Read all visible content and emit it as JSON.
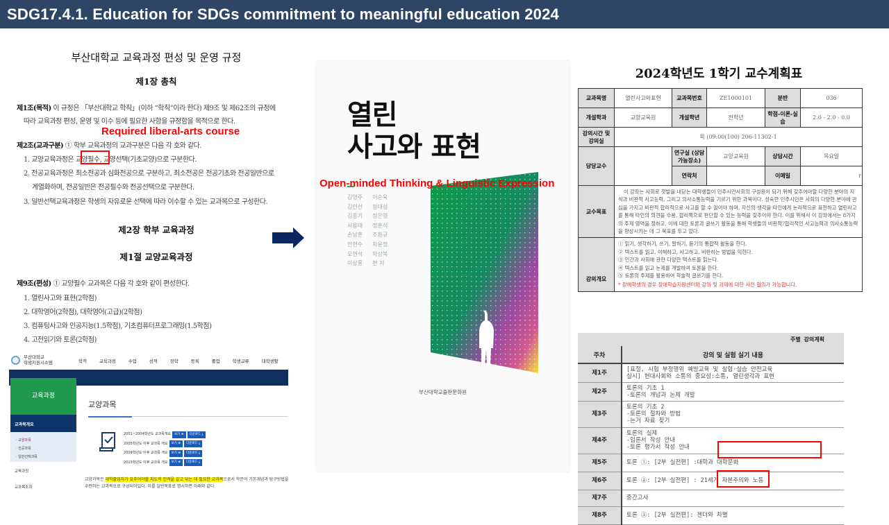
{
  "header": {
    "title": "SDG17.4.1. Education for SDGs commitment to meaningful education 2024"
  },
  "regulation": {
    "title": "부산대학교 교육과정 편성 및 운영 규정",
    "chapter1": "제1장 총칙",
    "art1_head": "제1조(목적)",
    "art1_l1": " 이 규정은 「부산대학교 학칙」(이하 “학칙”이라 한다) 제9조 및 제62조의 규정에",
    "art1_l2": "따라 교육과정 편성, 운영 및 이수 등에 필요한 사항을 규정함을 목적으로 한다.",
    "art2_head": "제2조(교과구분)",
    "art2_l0": " ① 학부 교육과정의 교과구분은 다음 각 호와 같다.",
    "art2_i1a": "1. 교양교육과정은 ",
    "art2_i1b": "교양필수",
    "art2_i1c": ", 교양선택(기초교양)으로 구분한다.",
    "art2_i2a": "2. 전공교육과정은 최소전공과 심화전공으로 구분하고, 최소전공은 전공기초와 전공일반으로",
    "art2_i2b": "계열화하며, 전공일반은 전공필수와 전공선택으로 구분한다.",
    "art2_i3": "3. 일반선택교육과정은 학생의 자유로운 선택에 따라 이수할 수 있는 교과목으로 구성한다.",
    "chapter2": "제2장 학부 교육과정",
    "section1": "제1절 교양교육과정",
    "art9_head": "제9조(편성)",
    "art9_l0": " ① 교양필수 교과목은 다음 각 호와 같이 편성한다.",
    "art9_items": [
      "1. 열린사고와 표현(2학점)",
      "2. 대학영어(2학점), 대학영어(고급)(2학점)",
      "3. 컴퓨팅사고와 인공지능(1.5학점), 기초컴퓨터프로그래밍(1.5학점)",
      "4. 고전읽기와 토론(2학점)"
    ],
    "annotation": "Required liberal-arts course"
  },
  "book": {
    "title_line1": "열린",
    "title_line2": "사고와 표현",
    "annotation": "Open-minded Thinking & Linguistic Expression",
    "authors": [
      [
        "김영주",
        "이순욱"
      ],
      [
        "김인선",
        "정대성"
      ],
      [
        "김종기",
        "정은영"
      ],
      [
        "서용태",
        "정훈식"
      ],
      [
        "손남훈",
        "조환규"
      ],
      [
        "안현수",
        "차윤정"
      ],
      [
        "오현석",
        "하상복"
      ],
      [
        "이상룡",
        "편 저"
      ]
    ],
    "publisher": "부산대학교출판문화원"
  },
  "syllabus": {
    "title": "2024학년도 1학기 교수계획표",
    "labels": {
      "course_name": "교과목명",
      "course_code": "교과목번호",
      "section": "분반",
      "dept": "개설학과",
      "year": "개설학년",
      "credits": "학점-이론-실습",
      "time_room": "강의시간 및 강의실",
      "instructor": "담당교수",
      "office": "연구실 (상담가능장소)",
      "office_hours": "상담시간",
      "contact": "연락처",
      "email": "이메일",
      "objectives": "교수목표",
      "overview": "강의개요"
    },
    "values": {
      "course_name": "열린사고와표현",
      "course_code": "ZE1000101",
      "section": "036",
      "dept": "교양교육원",
      "year": "전학년",
      "credits": "2.0 - 2.0 - 0.0",
      "time_room": "목 (09:00(100) 206-11302-1",
      "office": "교양교육원",
      "office_hours": "목요일",
      "email": "r"
    },
    "objectives": "이 강좌는 사회로 첫발을 내딛는 대학생들이 민주시민사회의 구성원이 되기 위해 갖추어야할 다양한 분야의 지식과 비판적 사고능력, 그리고 의사소통능력을 기르기 위한 과목이다. 성숙한 민주시민은 사회의 다양한 분야에 관심을 가지고 비판적 합리적으로 사고를 할 수 있어야 하며, 자신의 생각을 타인에게 논리적으로 표현하고 열린사고를 통해 타인의 의견을 수용, 합리적으로 판단할 수 있는 능력을 갖추어야 한다. 이를 위해서 이 강좌에서는 8가지의 주제 영역을 정하고, 이에 대한 토론과 글쓰기 활동을 통해 학생들의 비판적?합리적인 사고능력과 의사소통능력을 향상시키는 데 그 목표를 두고 있다.",
    "overview": [
      "① 읽기, 생각하기, 쓰기, 말하기, 듣기의 통합적 활동을 한다.",
      "② 텍스트를 읽고, 이해하고, 사고하고, 비판하는 방법을 익힌다.",
      "③ 인간과 사회에 관한 다양한 텍스트를 읽는다.",
      "④ 텍스트를 읽고 논제를 개발하여 토론을 한다.",
      "⑤ 토론의 주제를 활용하여 학술적 글쓰기를 한다."
    ],
    "note": "* 장애학생의 경우 장애학습지원센터와 강의 및 과제에 대한 사전 협의가 가능합니다."
  },
  "weekly": {
    "caption": "주별 강의계획",
    "col_week": "주차",
    "col_content": "강의 및 실험 실기 내용",
    "rows": [
      {
        "week": "제1주",
        "lines": [
          "[표절, 시험 부정행위 예방교육 및 실험·실습 안전교육",
          "실시] 현대사회와 소통의 중요성:소통, 열린생각과 표현"
        ]
      },
      {
        "week": "제2주",
        "lines": [
          "토론의 기초 1",
          "-토론의 개념과 논제 개발"
        ]
      },
      {
        "week": "제3주",
        "lines": [
          "토론의 기초 2",
          "-토론의 절차와 방법",
          "-논거 자료 찾기"
        ]
      },
      {
        "week": "제4주",
        "lines": [
          "토론의 실제",
          "-입론서 작성 안내",
          "-토론 평가서 작성 안내"
        ]
      },
      {
        "week": "제5주",
        "lines": [
          "토론 ①: [2부 실전편] :대학과 대학문화"
        ]
      },
      {
        "week": "제6주",
        "lines": [
          "토론 ②: [2부 실전편] : 21세기 자본주의와 노동"
        ]
      },
      {
        "week": "제7주",
        "lines": [
          "중간고사"
        ]
      },
      {
        "week": "제8주",
        "lines": [
          "토론 ③: [2부 실전편]: 젠더와 차별"
        ]
      }
    ]
  },
  "portal": {
    "logo_line1": "부산대학교",
    "logo_line2": "학생지원시스템",
    "nav": [
      "학적",
      "교육과정",
      "수업",
      "성적",
      "장학",
      "등록",
      "졸업",
      "학생교류",
      "대학생활"
    ],
    "side_title": "교육과정",
    "side_active": "교과목개요",
    "side_sub": [
      "· 교양과목",
      "· 전공과목",
      "· 일반선택과목"
    ],
    "side_more": [
      "교육과정",
      "교과목조회"
    ],
    "page_title": "교양과목",
    "rows": [
      "2001~2004학년도 교과목개요",
      "2005학년도 이후 교과목 개요",
      "2009학년도 이후 교과목 개요",
      "2013학년도 이후 교과목 개요"
    ],
    "view_label": "보기 ⊕",
    "download_label": "다운로드 ⤓",
    "desc_a": "교양과목은 ",
    "desc_hl": "대학졸업자가 갖추어야할 지도적 인격을 갈고 닦는 데 필요한 교과목",
    "desc_b": "으로서 학문의 기본개념과 탐구방법을 수련하는 교과목으로 구성되어있다. 이를 일반목표로 명시하면 아래와 같다."
  },
  "colors": {
    "header": "#2e4566",
    "annotation": "#ff0000",
    "arrow": "#0b2560",
    "portal_green": "#1f9a4c",
    "portal_navy": "#0f3469"
  }
}
